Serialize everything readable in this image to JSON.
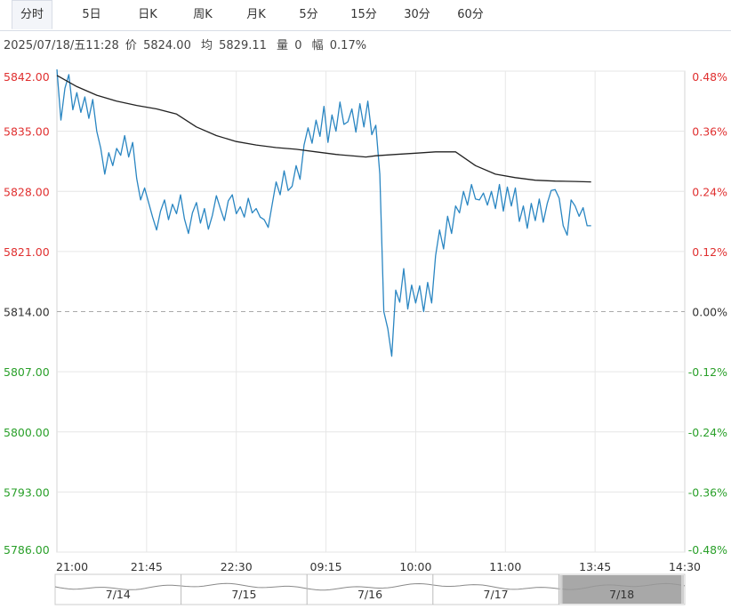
{
  "tabs": [
    {
      "label": "分时",
      "active": true
    },
    {
      "label": "5日",
      "active": false
    },
    {
      "label": "日K",
      "active": false
    },
    {
      "label": "周K",
      "active": false
    },
    {
      "label": "月K",
      "active": false
    },
    {
      "label": "5分",
      "active": false
    },
    {
      "label": "15分",
      "active": false
    },
    {
      "label": "30分",
      "active": false
    },
    {
      "label": "60分",
      "active": false
    }
  ],
  "info": {
    "datetime": "2025/07/18/五11:28",
    "price_label": "价",
    "price": "5824.00",
    "avg_label": "均",
    "avg": "5829.11",
    "volume_label": "量",
    "volume": "0",
    "change_label": "幅",
    "change": "0.17%"
  },
  "colors": {
    "up": "#e03030",
    "down": "#2aa02a",
    "price_line": "#2a86c2",
    "avg_line": "#222222",
    "grid": "#e6e6e6",
    "baseline": "#aaaaaa",
    "navigator_selected": "#999999"
  },
  "chart_data": {
    "type": "line",
    "base_price": 5814.0,
    "ylim": [
      5786.0,
      5842.0
    ],
    "y_ticks": [
      "5842.00",
      "5835.00",
      "5828.00",
      "5821.00",
      "5814.00",
      "5807.00",
      "5800.00",
      "5793.00",
      "5786.00"
    ],
    "y_tick_values": [
      5842,
      5835,
      5828,
      5821,
      5814,
      5807,
      5800,
      5793,
      5786
    ],
    "right_ticks": [
      "0.48%",
      "0.36%",
      "0.24%",
      "0.12%",
      "0.00%",
      "-0.12%",
      "-0.24%",
      "-0.36%",
      "-0.48%"
    ],
    "x_ticks": [
      "21:00",
      "21:45",
      "22:30",
      "09:15",
      "10:00",
      "11:00",
      "13:45",
      "14:30"
    ],
    "grid": true,
    "x_index_range": [
      0,
      315
    ],
    "series": [
      {
        "name": "",
        "role": "price",
        "x": [
          0,
          2,
          4,
          6,
          8,
          10,
          12,
          14,
          16,
          18,
          20,
          22,
          24,
          26,
          28,
          30,
          32,
          34,
          36,
          38,
          40,
          42,
          44,
          46,
          48,
          50,
          52,
          54,
          56,
          58,
          60,
          62,
          64,
          66,
          68,
          70,
          72,
          74,
          76,
          78,
          80,
          82,
          84,
          86,
          88,
          90,
          92,
          94,
          96,
          98,
          100,
          102,
          104,
          106,
          108,
          110,
          112,
          114,
          116,
          118,
          120,
          122,
          124,
          126,
          128,
          130,
          132,
          134,
          136,
          138,
          140,
          142,
          144,
          146,
          148,
          150,
          152,
          154,
          156,
          158,
          160,
          162,
          164,
          166,
          168,
          170,
          172,
          174,
          176,
          178,
          180,
          182,
          184,
          186,
          188,
          190,
          192,
          194,
          196,
          198,
          200,
          202,
          204,
          206,
          208,
          210,
          212,
          214,
          216,
          218,
          220,
          222,
          224,
          226,
          228,
          230,
          232,
          234,
          236,
          238,
          240,
          242,
          244,
          246,
          248,
          250,
          252,
          254,
          256,
          258,
          260,
          262,
          264,
          266,
          268
        ],
        "values": [
          5842.2,
          5836.3,
          5840.0,
          5841.6,
          5837.5,
          5839.5,
          5837.2,
          5839.0,
          5836.5,
          5838.7,
          5835.0,
          5833.0,
          5830.0,
          5832.5,
          5831.0,
          5833.0,
          5832.2,
          5834.5,
          5832.0,
          5833.7,
          5829.5,
          5827.0,
          5828.4,
          5826.7,
          5825.0,
          5823.5,
          5825.7,
          5827.0,
          5824.7,
          5826.5,
          5825.4,
          5827.6,
          5824.8,
          5823.1,
          5825.5,
          5826.7,
          5824.3,
          5826.0,
          5823.6,
          5825.2,
          5827.5,
          5826.0,
          5824.6,
          5826.9,
          5827.6,
          5825.4,
          5826.2,
          5825.0,
          5827.2,
          5825.5,
          5826.0,
          5825.0,
          5824.7,
          5823.8,
          5826.5,
          5829.1,
          5827.6,
          5830.4,
          5828.1,
          5828.6,
          5831.0,
          5829.4,
          5833.4,
          5835.4,
          5833.6,
          5836.3,
          5834.4,
          5837.9,
          5833.7,
          5836.9,
          5835.0,
          5838.4,
          5835.8,
          5836.1,
          5837.6,
          5834.9,
          5838.2,
          5835.5,
          5838.5,
          5834.6,
          5835.7,
          5830.0,
          5814.0,
          5812.0,
          5808.8,
          5816.5,
          5815.1,
          5819.0,
          5814.3,
          5817.1,
          5815.0,
          5817.0,
          5814.0,
          5817.4,
          5815.0,
          5820.5,
          5823.5,
          5821.3,
          5825.1,
          5823.1,
          5826.3,
          5825.5,
          5828.0,
          5826.4,
          5828.8,
          5827.1,
          5827.0,
          5827.8,
          5826.4,
          5828.0,
          5826.0,
          5828.8,
          5825.7,
          5828.5,
          5826.3,
          5828.4,
          5824.5,
          5826.3,
          5823.7,
          5826.6,
          5824.6,
          5827.1,
          5824.4,
          5826.6,
          5828.1,
          5828.2,
          5827.2,
          5824.0,
          5822.9,
          5827.0,
          5826.3,
          5825.1,
          5826.1,
          5824.0,
          5824.0
        ]
      },
      {
        "name": "",
        "role": "average",
        "x": [
          0,
          10,
          20,
          30,
          40,
          50,
          60,
          70,
          80,
          90,
          100,
          110,
          120,
          130,
          140,
          150,
          155,
          160,
          170,
          180,
          190,
          200,
          210,
          220,
          230,
          240,
          250,
          260,
          268
        ],
        "values": [
          5841.5,
          5840.2,
          5839.2,
          5838.5,
          5838.0,
          5837.6,
          5837.0,
          5835.5,
          5834.5,
          5833.8,
          5833.4,
          5833.1,
          5832.9,
          5832.6,
          5832.3,
          5832.1,
          5832.0,
          5832.15,
          5832.3,
          5832.45,
          5832.6,
          5832.6,
          5831.0,
          5830.0,
          5829.6,
          5829.3,
          5829.2,
          5829.15,
          5829.1
        ]
      }
    ]
  },
  "navigator": {
    "labels": [
      "7/14",
      "7/15",
      "7/16",
      "7/17",
      "7/18"
    ],
    "selected_index": 4
  }
}
